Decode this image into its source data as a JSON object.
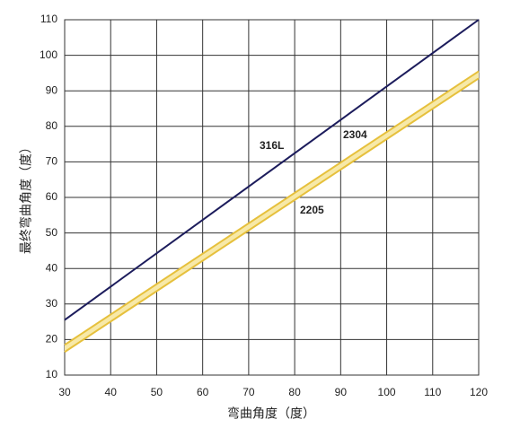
{
  "chart_data": {
    "type": "line",
    "x_label": "弯曲角度（度）",
    "y_label": "最终弯曲角度（度）",
    "x": [
      30,
      120
    ],
    "series": [
      {
        "name": "316L",
        "color": "#1c1c5c",
        "values": [
          25.5,
          110
        ]
      },
      {
        "name": "2304",
        "color": "#e6c03c",
        "values": [
          18.5,
          95.5
        ]
      },
      {
        "name": "2205",
        "color": "#e6c03c",
        "values": [
          16.5,
          93.5
        ]
      }
    ],
    "xlim": [
      30,
      120
    ],
    "xticks": [
      30,
      40,
      50,
      60,
      70,
      80,
      90,
      100,
      110,
      120
    ],
    "ylim": [
      10,
      110
    ],
    "yticks": [
      10,
      20,
      30,
      40,
      50,
      60,
      70,
      80,
      90,
      100,
      110
    ],
    "grid": true
  }
}
